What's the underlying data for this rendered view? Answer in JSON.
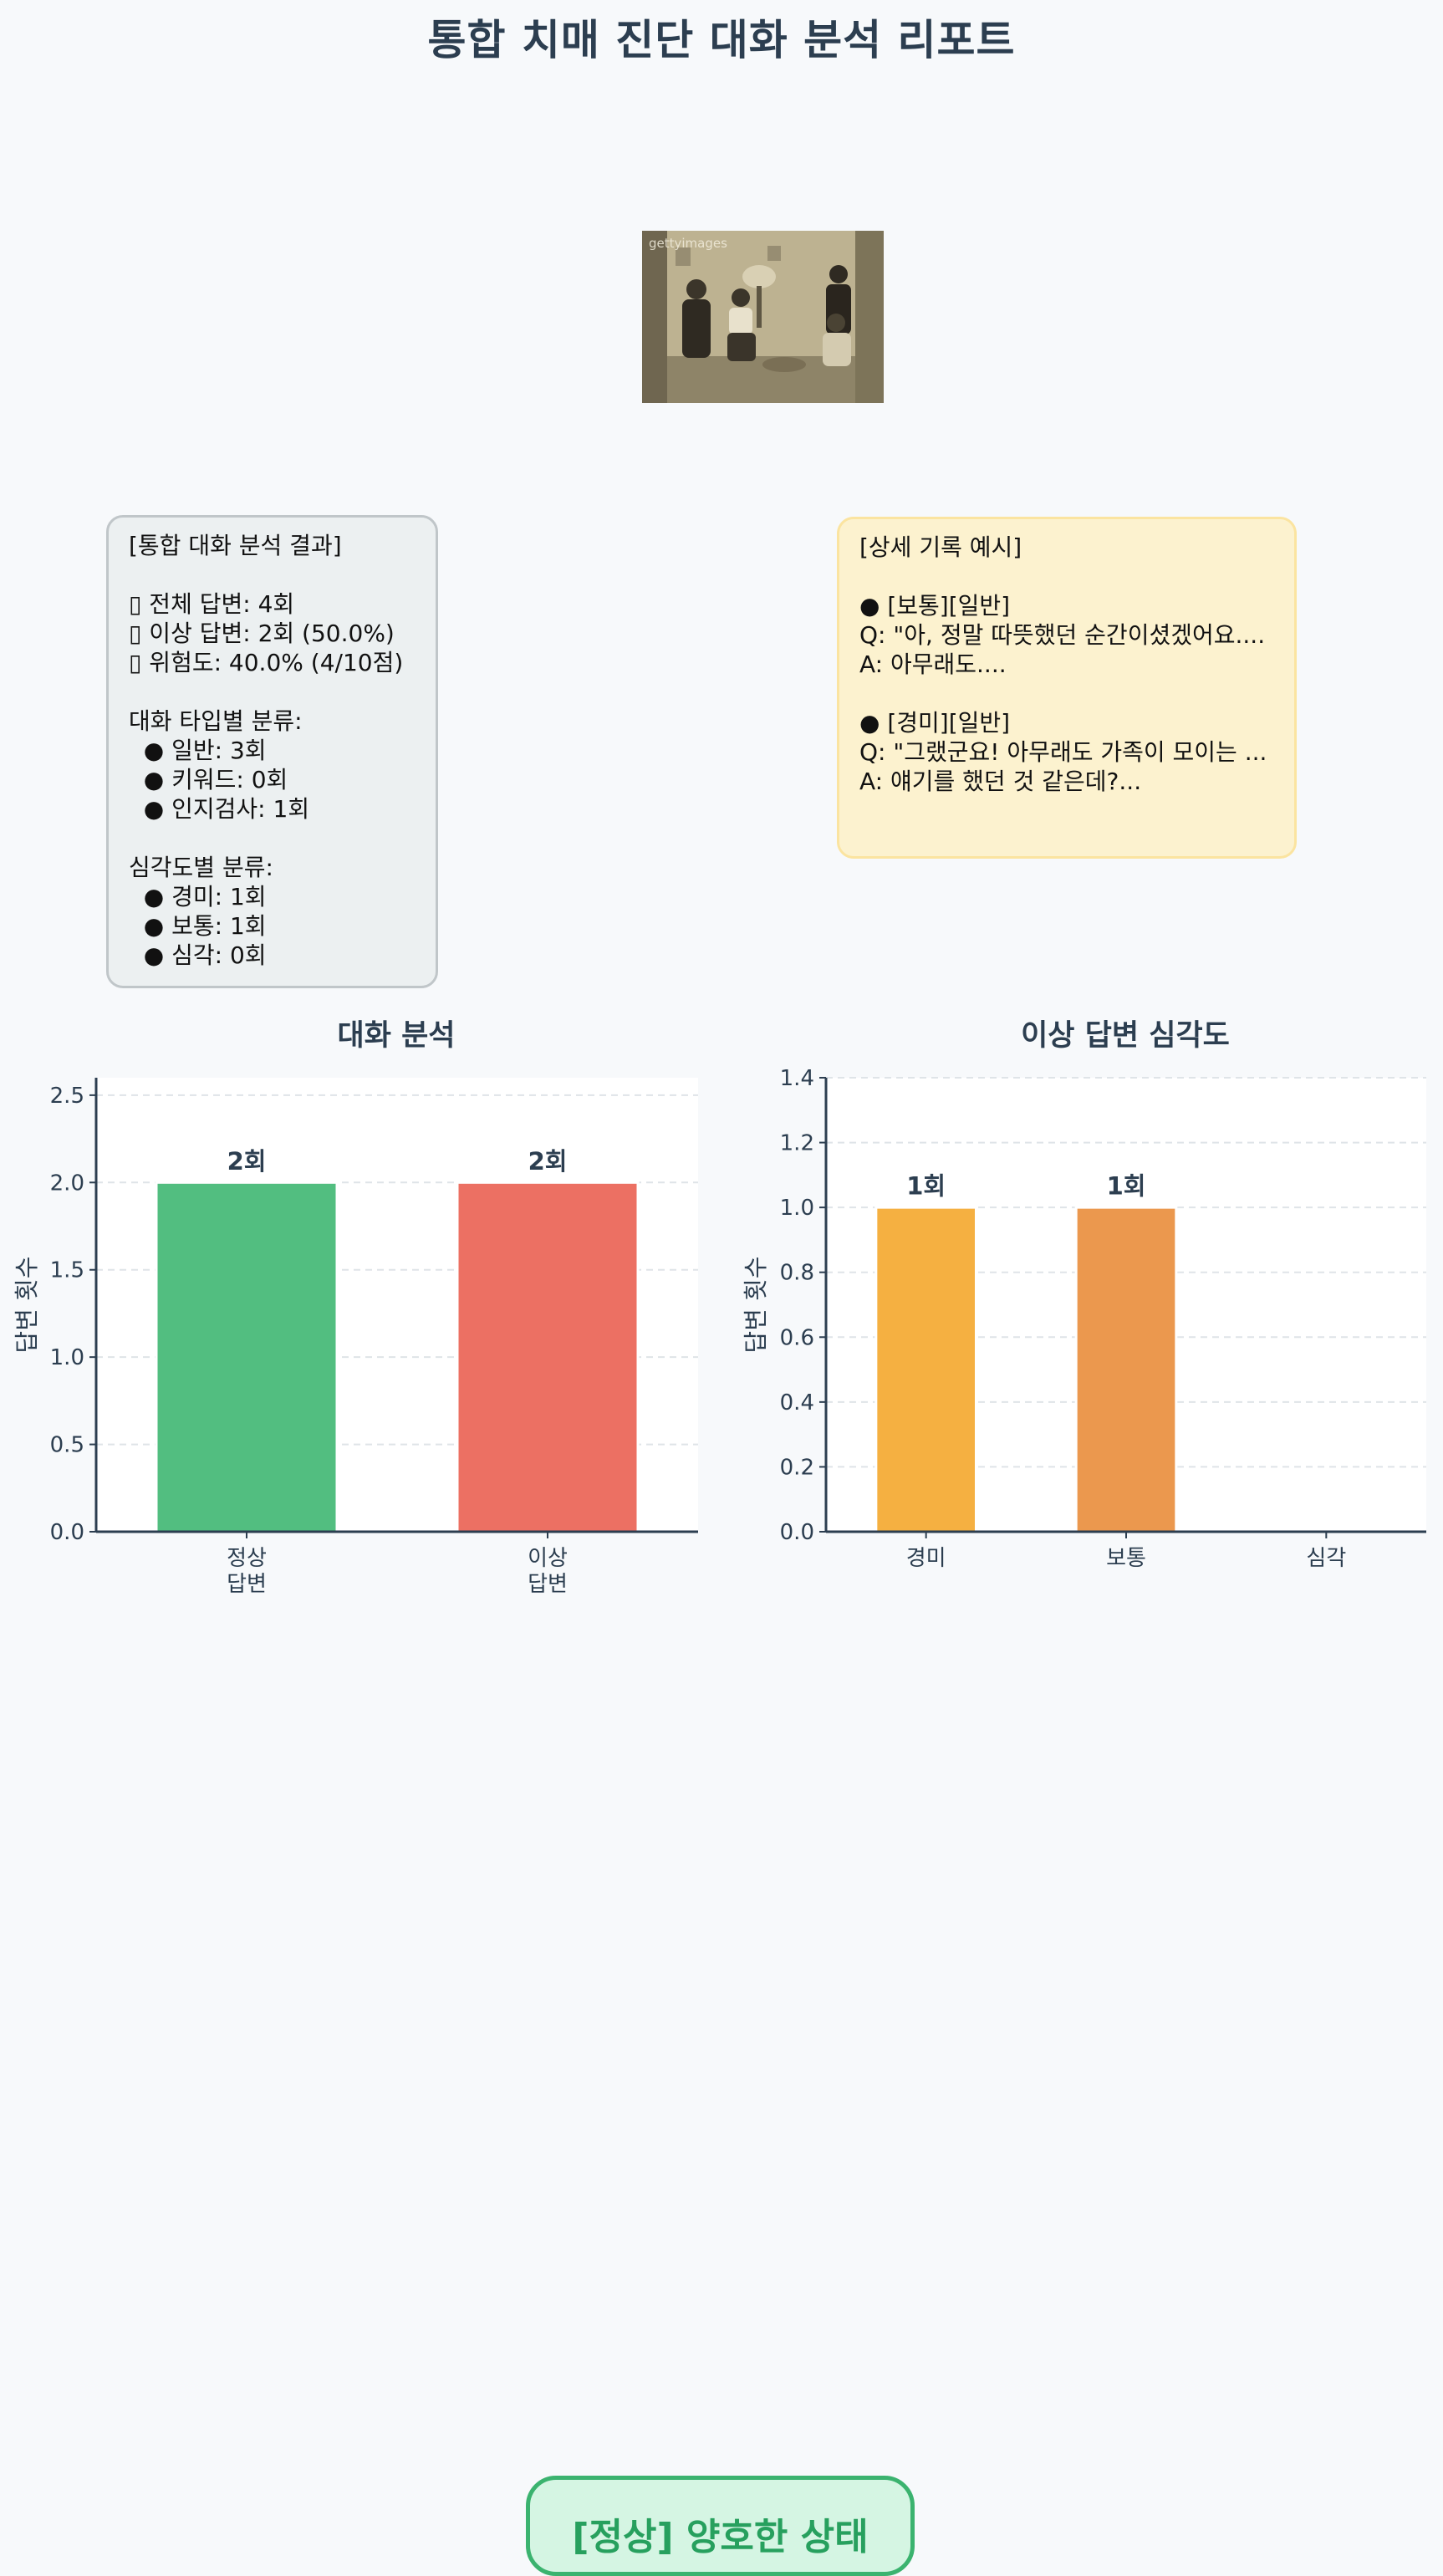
{
  "report": {
    "title": "통합 치매 진단 대화 분석 리포트",
    "photo_watermark": "gettyimages",
    "summary_text": "[통합 대화 분석 결과]\n\n▯ 전체 답변: 4회\n▯ 이상 답변: 2회 (50.0%)\n▯ 위험도: 40.0% (4/10점)\n\n대화 타입별 분류:\n  ● 일반: 3회\n  ● 키워드: 0회\n  ● 인지검사: 1회\n\n심각도별 분류:\n  ● 경미: 1회\n  ● 보통: 1회\n  ● 심각: 0회",
    "detail_text": "[상세 기록 예시]\n\n● [보통][일반]\nQ: \"아, 정말 따뜻했던 순간이셨겠어요....\nA: 아무래도....\n\n● [경미][일반]\nQ: \"그랬군요! 아무래도 가족이 모이는 ...\nA: 얘기를 했던 것 같은데?...",
    "status_label": "[정상] 양호한 상태"
  },
  "colors": {
    "normal": "#52be80",
    "abnormal": "#ec7063",
    "mild": "#f5b041",
    "moderate": "#eb984e",
    "status_border": "#3bb36f"
  },
  "chart_data": [
    {
      "type": "bar",
      "title": "대화 분석",
      "categories": [
        "정상\n답변",
        "이상\n답변"
      ],
      "values": [
        2,
        2
      ],
      "value_labels": [
        "2회",
        "2회"
      ],
      "colors": [
        "#52be80",
        "#ec7063"
      ],
      "xlabel": "",
      "ylabel": "답변 횟수",
      "ylim": [
        0,
        2.6
      ],
      "yticks": [
        0.0,
        0.5,
        1.0,
        1.5,
        2.0,
        2.5
      ],
      "grid": true
    },
    {
      "type": "bar",
      "title": "이상 답변 심각도",
      "categories": [
        "경미",
        "보통",
        "심각"
      ],
      "values": [
        1,
        1,
        0
      ],
      "value_labels": [
        "1회",
        "1회",
        ""
      ],
      "colors": [
        "#f5b041",
        "#eb984e",
        "#e74c3c"
      ],
      "xlabel": "",
      "ylabel": "답변 횟수",
      "ylim": [
        0,
        1.4
      ],
      "yticks": [
        0.0,
        0.2,
        0.4,
        0.6,
        0.8,
        1.0,
        1.2,
        1.4
      ],
      "grid": true
    }
  ]
}
